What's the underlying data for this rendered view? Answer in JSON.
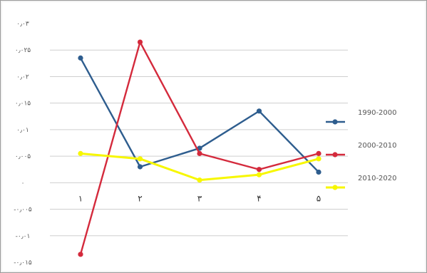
{
  "chart_data": {
    "type": "line",
    "title": "",
    "xlabel": "",
    "ylabel": "",
    "categories": [
      "۱",
      "۲",
      "۳",
      "۴",
      "۵"
    ],
    "y_ticks": [
      "۰٫۰۳",
      "۰٫۰۲۵",
      "۰٫۰۲",
      "۰٫۰۱۵",
      "۰٫۰۱",
      "۰٫۰۰۵",
      "۰",
      "-۰٫۰۰۵",
      "-۰٫۰۱",
      "-۰٫۰۱۵"
    ],
    "ylim": [
      -0.015,
      0.03
    ],
    "grid": true,
    "legend_position": "right",
    "series": [
      {
        "name": "1990-2000",
        "color": "#2e5d8e",
        "values": [
          0.0235,
          0.003,
          0.0065,
          0.0135,
          0.002
        ]
      },
      {
        "name": "2000-2010",
        "color": "#d42a3c",
        "values": [
          -0.0135,
          0.0265,
          0.0055,
          0.0025,
          0.0055
        ]
      },
      {
        "name": "2010-2020",
        "color": "#f7f700",
        "values": [
          0.0055,
          0.0045,
          0.0005,
          0.0015,
          0.0045
        ]
      }
    ]
  }
}
